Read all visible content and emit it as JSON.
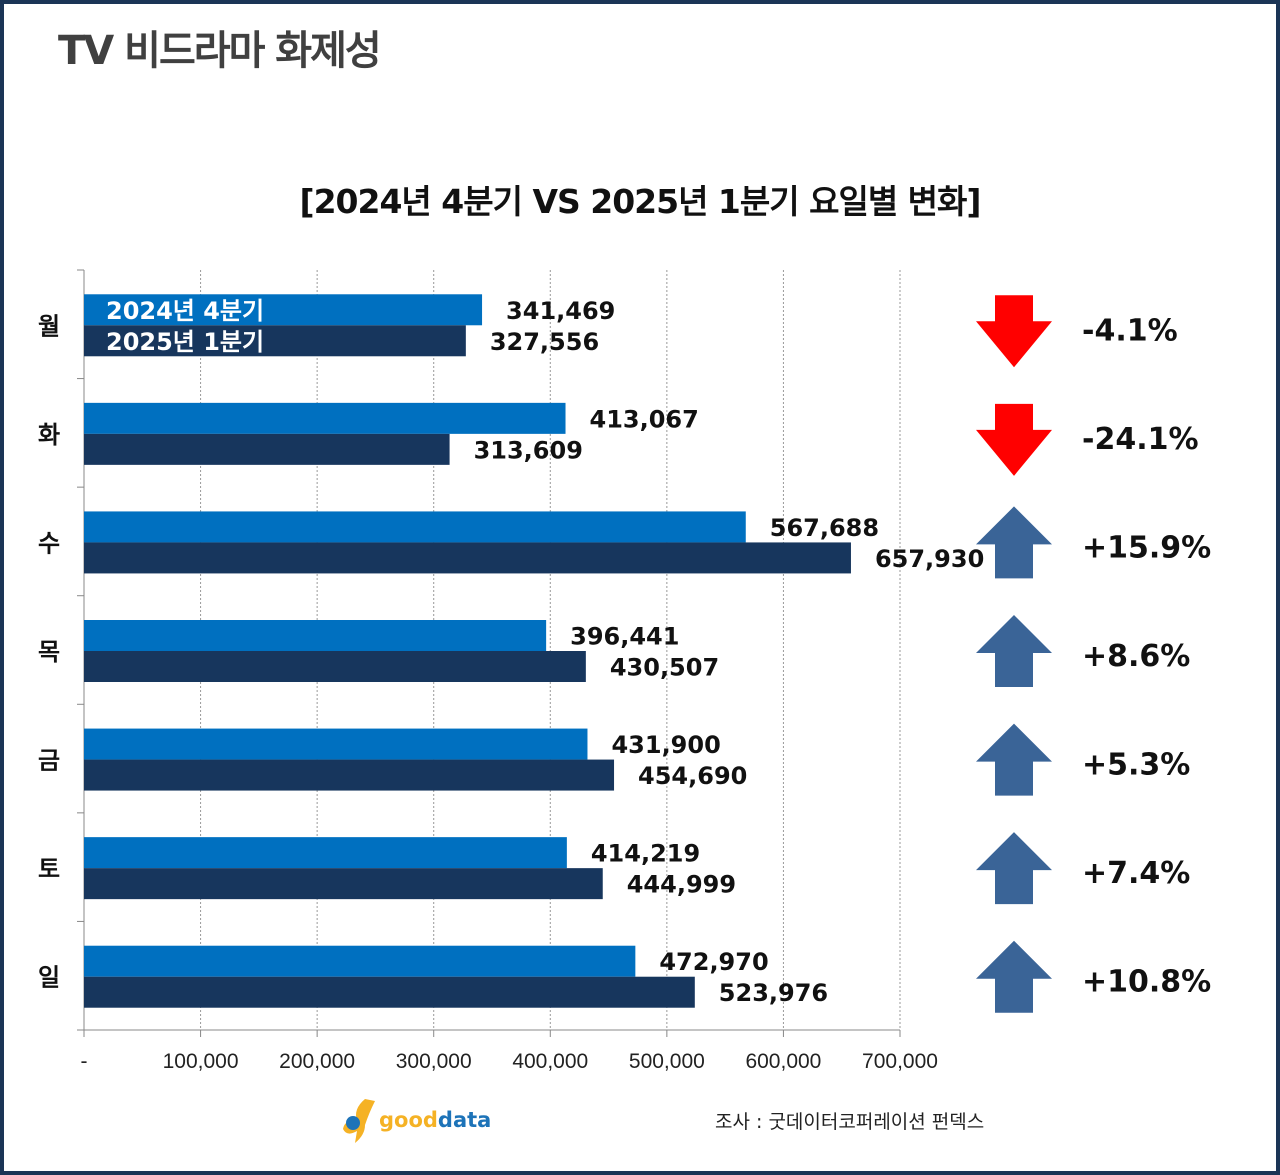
{
  "header": {
    "title": "TV 비드라마 화제성"
  },
  "chart_data": {
    "type": "bar",
    "orientation": "horizontal",
    "title": "[2024년 4분기 VS 2025년 1분기 요일별 변화]",
    "categories": [
      "월",
      "화",
      "수",
      "목",
      "금",
      "토",
      "일"
    ],
    "series": [
      {
        "name": "2024년 4분기",
        "color": "#0070C0",
        "values": [
          341469,
          413067,
          567688,
          396441,
          431900,
          414219,
          472970
        ]
      },
      {
        "name": "2025년 1분기",
        "color": "#17365D",
        "values": [
          327556,
          313609,
          657930,
          430507,
          454690,
          444999,
          523976
        ]
      }
    ],
    "value_labels": [
      [
        "341,469",
        "327,556"
      ],
      [
        "413,067",
        "313,609"
      ],
      [
        "567,688",
        "657,930"
      ],
      [
        "396,441",
        "430,507"
      ],
      [
        "431,900",
        "454,690"
      ],
      [
        "414,219",
        "444,999"
      ],
      [
        "472,970",
        "523,976"
      ]
    ],
    "changes": [
      {
        "label": "-4.1%",
        "direction": "down"
      },
      {
        "label": "-24.1%",
        "direction": "down"
      },
      {
        "label": "+15.9%",
        "direction": "up"
      },
      {
        "label": "+8.6%",
        "direction": "up"
      },
      {
        "label": "+5.3%",
        "direction": "up"
      },
      {
        "label": "+7.4%",
        "direction": "up"
      },
      {
        "label": "+10.8%",
        "direction": "up"
      }
    ],
    "arrow_colors": {
      "up": "#3A6497",
      "down": "#FF0000"
    },
    "xlim": [
      0,
      700000
    ],
    "xticks": [
      0,
      100000,
      200000,
      300000,
      400000,
      500000,
      600000,
      700000
    ],
    "xtick_labels": [
      "-",
      "100,000",
      "200,000",
      "300,000",
      "400,000",
      "500,000",
      "600,000",
      "700,000"
    ],
    "grid": true,
    "legend": "inside-first-bar"
  },
  "footer": {
    "logo_a": "good",
    "logo_b": "data",
    "source": "조사 : 굿데이터코퍼레이션 펀덱스"
  }
}
